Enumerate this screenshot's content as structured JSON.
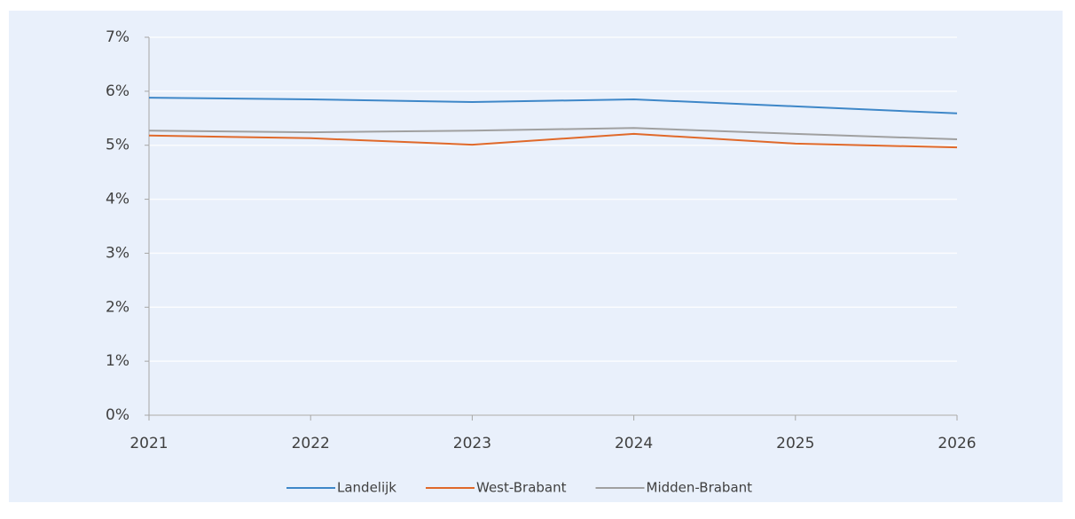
{
  "chart_data": {
    "type": "line",
    "x": [
      2021,
      2022,
      2023,
      2024,
      2025,
      2026
    ],
    "xlim": [
      2021,
      2026
    ],
    "xticks": [
      2021,
      2022,
      2023,
      2024,
      2025,
      2026
    ],
    "ylim": [
      0,
      7
    ],
    "yticks": [
      {
        "value": 0,
        "label": "0%"
      },
      {
        "value": 1,
        "label": "1%"
      },
      {
        "value": 2,
        "label": "2%"
      },
      {
        "value": 3,
        "label": "3%"
      },
      {
        "value": 4,
        "label": "4%"
      },
      {
        "value": 5,
        "label": "5%"
      },
      {
        "value": 6,
        "label": "6%"
      },
      {
        "value": 7,
        "label": "7%"
      }
    ],
    "grid": true,
    "legend": "bottom",
    "series": [
      {
        "name": "Landelijk",
        "color": "#3e87c8",
        "values": [
          5.88,
          5.85,
          5.8,
          5.85,
          5.72,
          5.59
        ]
      },
      {
        "name": "West-Brabant",
        "color": "#e0692a",
        "values": [
          5.18,
          5.13,
          5.01,
          5.21,
          5.03,
          4.96
        ]
      },
      {
        "name": "Midden-Brabant",
        "color": "#a0a0a0",
        "values": [
          5.27,
          5.24,
          5.27,
          5.32,
          5.21,
          5.11
        ]
      }
    ]
  }
}
